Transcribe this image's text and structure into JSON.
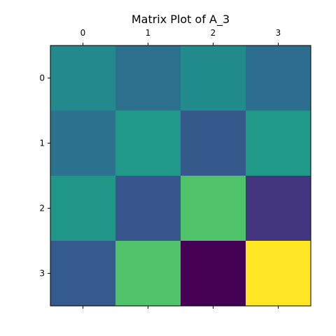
{
  "chart_data": {
    "type": "heatmap",
    "title": "Matrix Plot of A_3",
    "xlabel": "",
    "ylabel": "",
    "x_ticks": [
      "0",
      "1",
      "2",
      "3"
    ],
    "y_ticks": [
      "0",
      "1",
      "2",
      "3"
    ],
    "x_tick_position": "top-and-bottom",
    "colormap": "viridis",
    "grid": false,
    "values": [
      [
        0.47,
        0.37,
        0.48,
        0.36
      ],
      [
        0.38,
        0.54,
        0.28,
        0.54
      ],
      [
        0.53,
        0.27,
        0.72,
        0.16
      ],
      [
        0.29,
        0.72,
        0.0,
        1.0
      ]
    ]
  }
}
